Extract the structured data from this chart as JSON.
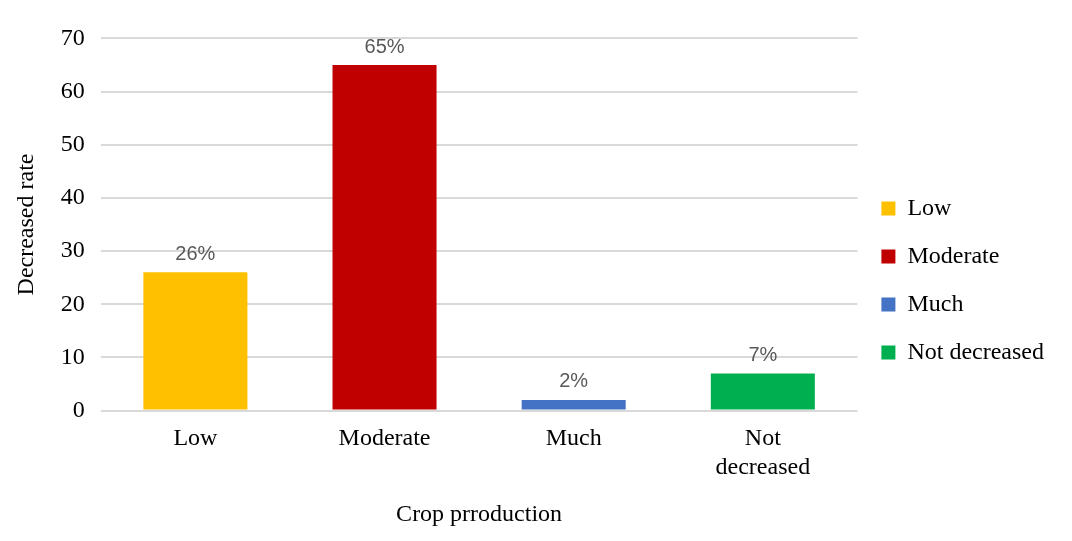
{
  "chart_data": {
    "type": "bar",
    "xlabel": "Crop prroduction",
    "ylabel": "Decreased rate",
    "categories": [
      "Low",
      "Moderate",
      "Much",
      "Not decreased"
    ],
    "series": [
      {
        "name": "Low",
        "color": "#ffc000",
        "values": [
          26,
          null,
          null,
          null
        ],
        "value_labels": [
          "26%",
          null,
          null,
          null
        ]
      },
      {
        "name": "Moderate",
        "color": "#c00000",
        "values": [
          null,
          65,
          null,
          null
        ],
        "value_labels": [
          null,
          "65%",
          null,
          null
        ]
      },
      {
        "name": "Much",
        "color": "#4472c4",
        "values": [
          null,
          null,
          2,
          null
        ],
        "value_labels": [
          null,
          null,
          "2%",
          null
        ]
      },
      {
        "name": "Not decreased",
        "color": "#00b050",
        "values": [
          null,
          null,
          null,
          7
        ],
        "value_labels": [
          null,
          null,
          null,
          "7%"
        ]
      }
    ],
    "ylim": [
      0,
      70
    ],
    "yticks": [
      0,
      10,
      20,
      30,
      40,
      50,
      60,
      70
    ],
    "grid": "y",
    "legend": "right"
  }
}
